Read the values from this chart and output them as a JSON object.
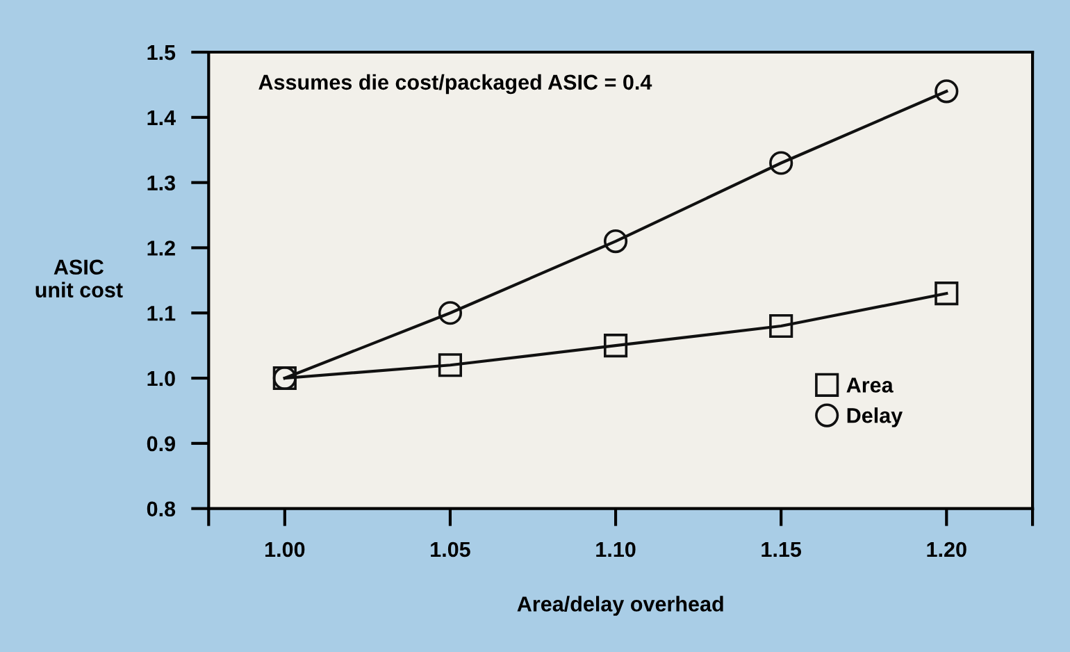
{
  "chart_data": {
    "type": "line",
    "xlabel": "Area/delay overhead",
    "ylabel": "ASIC\nunit cost",
    "annotations": [
      "Assumes die cost/packaged ASIC = 0.4"
    ],
    "x": [
      1.0,
      1.05,
      1.1,
      1.15,
      1.2
    ],
    "series": [
      {
        "name": "Area",
        "color": "#111111",
        "marker": "square",
        "values": [
          1.0,
          1.02,
          1.05,
          1.08,
          1.13
        ]
      },
      {
        "name": "Delay",
        "color": "#111111",
        "marker": "circle",
        "values": [
          1.0,
          1.1,
          1.21,
          1.33,
          1.44
        ]
      }
    ],
    "xlim": [
      0.977,
      1.226
    ],
    "xticks": [
      {
        "value": 0.977,
        "label": null
      },
      {
        "value": 1.0,
        "label": "1.00"
      },
      {
        "value": 1.05,
        "label": "1.05"
      },
      {
        "value": 1.1,
        "label": "1.10"
      },
      {
        "value": 1.15,
        "label": "1.15"
      },
      {
        "value": 1.2,
        "label": "1.20"
      },
      {
        "value": 1.226,
        "label": null
      }
    ],
    "ylim": [
      0.8,
      1.5
    ],
    "yticks": [
      {
        "value": 0.8,
        "label": "0.8"
      },
      {
        "value": 0.9,
        "label": "0.9"
      },
      {
        "value": 1.0,
        "label": "1.0"
      },
      {
        "value": 1.1,
        "label": "1.1"
      },
      {
        "value": 1.2,
        "label": "1.2"
      },
      {
        "value": 1.3,
        "label": "1.3"
      },
      {
        "value": 1.4,
        "label": "1.4"
      },
      {
        "value": 1.5,
        "label": "1.5"
      }
    ],
    "grid": false,
    "legend": "bottom right",
    "line_style": "solid"
  }
}
